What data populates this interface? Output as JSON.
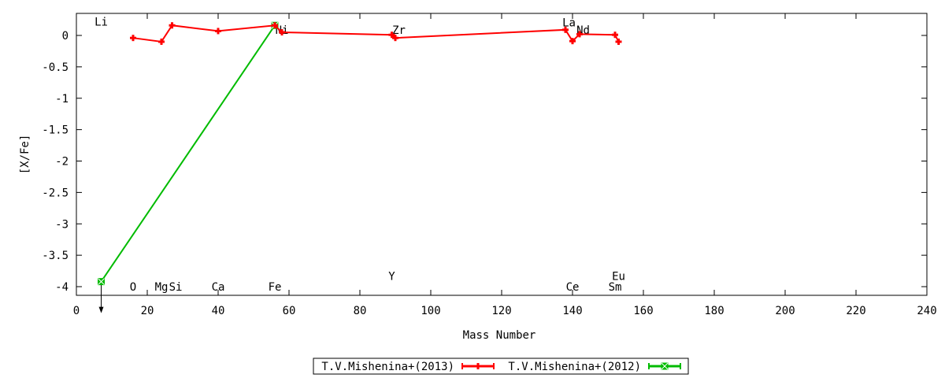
{
  "chart_data": {
    "type": "line",
    "xlabel": "Mass Number",
    "ylabel": "[X/Fe]",
    "xlim": [
      0,
      240
    ],
    "ylim": [
      -4.15,
      0.35
    ],
    "xticks": [
      0,
      20,
      40,
      60,
      80,
      100,
      120,
      140,
      160,
      180,
      200,
      220,
      240
    ],
    "yticks": [
      0,
      -0.5,
      -1,
      -1.5,
      -2,
      -2.5,
      -3,
      -3.5,
      -4
    ],
    "ytick_labels": [
      "0",
      "-0.5",
      "-1",
      "-1.5",
      "-2",
      "-2.5",
      "-3",
      "-3.5",
      "-4"
    ],
    "grid": false,
    "legend_position": "bottom-center",
    "series": [
      {
        "name": "T.V.Mishenina+(2013)",
        "color": "#ff0000",
        "marker": "plus",
        "points": [
          {
            "x": 16,
            "y": -0.04
          },
          {
            "x": 24,
            "y": -0.1
          },
          {
            "x": 27,
            "y": 0.16
          },
          {
            "x": 40,
            "y": 0.07
          },
          {
            "x": 56,
            "y": 0.16
          },
          {
            "x": 58,
            "y": 0.05
          },
          {
            "x": 89,
            "y": 0.01
          },
          {
            "x": 90,
            "y": -0.04
          },
          {
            "x": 138,
            "y": 0.09
          },
          {
            "x": 140,
            "y": -0.09
          },
          {
            "x": 142,
            "y": 0.02
          },
          {
            "x": 152,
            "y": 0.01
          },
          {
            "x": 153,
            "y": -0.1
          }
        ]
      },
      {
        "name": "T.V.Mishenina+(2012)",
        "color": "#00bb00",
        "marker": "x-square",
        "points": [
          {
            "x": 7,
            "y": -3.92,
            "upper_limit": true
          },
          {
            "x": 56,
            "y": 0.16
          }
        ]
      }
    ],
    "element_labels": [
      {
        "text": "Li",
        "x": 7,
        "y": 0.22
      },
      {
        "text": "O",
        "x": 16,
        "y": -4.0
      },
      {
        "text": "Mg",
        "x": 24,
        "y": -4.0
      },
      {
        "text": "Si",
        "x": 28,
        "y": -4.0
      },
      {
        "text": "Ca",
        "x": 40,
        "y": -4.0
      },
      {
        "text": "Fe",
        "x": 56,
        "y": -4.0
      },
      {
        "text": "Ni",
        "x": 58,
        "y": 0.09
      },
      {
        "text": "Zr",
        "x": 91,
        "y": 0.09
      },
      {
        "text": "Y",
        "x": 89,
        "y": -3.83
      },
      {
        "text": "La",
        "x": 139,
        "y": 0.21
      },
      {
        "text": "Nd",
        "x": 143,
        "y": 0.09
      },
      {
        "text": "Ce",
        "x": 140,
        "y": -4.0
      },
      {
        "text": "Eu",
        "x": 153,
        "y": -3.83
      },
      {
        "text": "Sm",
        "x": 152,
        "y": -4.0
      }
    ]
  }
}
